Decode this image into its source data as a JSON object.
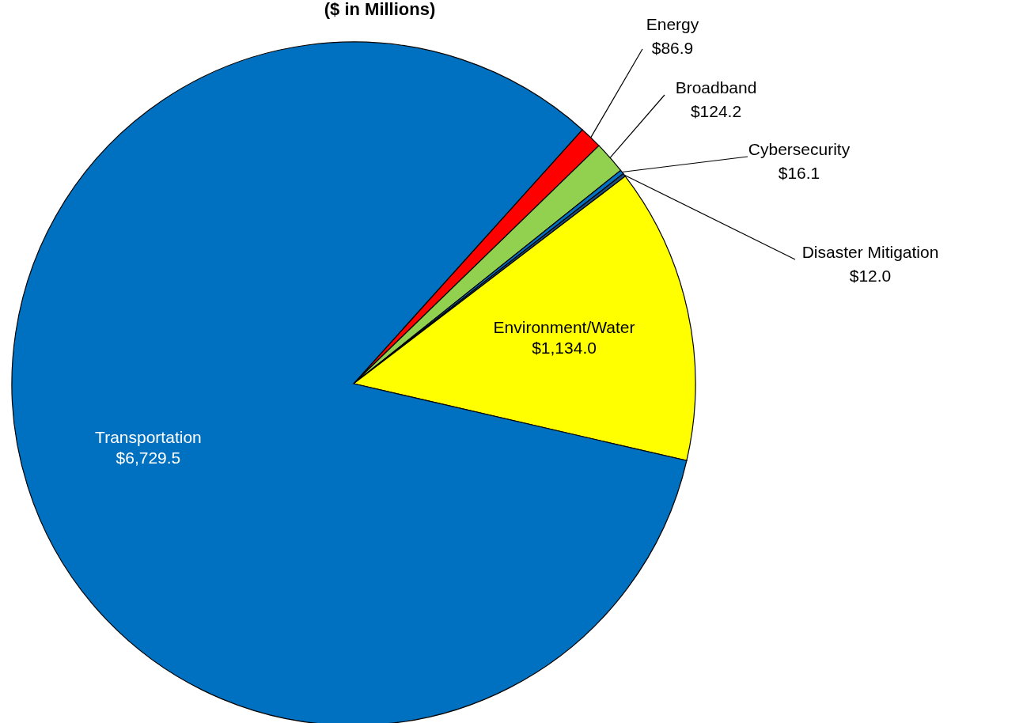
{
  "chart_data": {
    "type": "pie",
    "title": "($ in Millions)",
    "categories": [
      "Energy",
      "Broadband",
      "Cybersecurity",
      "Disaster Mitigation",
      "Environment/Water",
      "Transportation"
    ],
    "values": [
      86.9,
      124.2,
      16.1,
      12.0,
      1134.0,
      6729.5
    ],
    "value_labels": [
      "$86.9",
      "$124.2",
      "$16.1",
      "$12.0",
      "$1,134.0",
      "$6,729.5"
    ],
    "colors": [
      "#ff0000",
      "#92d050",
      "#0070c0",
      "#1f4e79",
      "#ffff00",
      "#0070c0"
    ],
    "legend": false
  }
}
